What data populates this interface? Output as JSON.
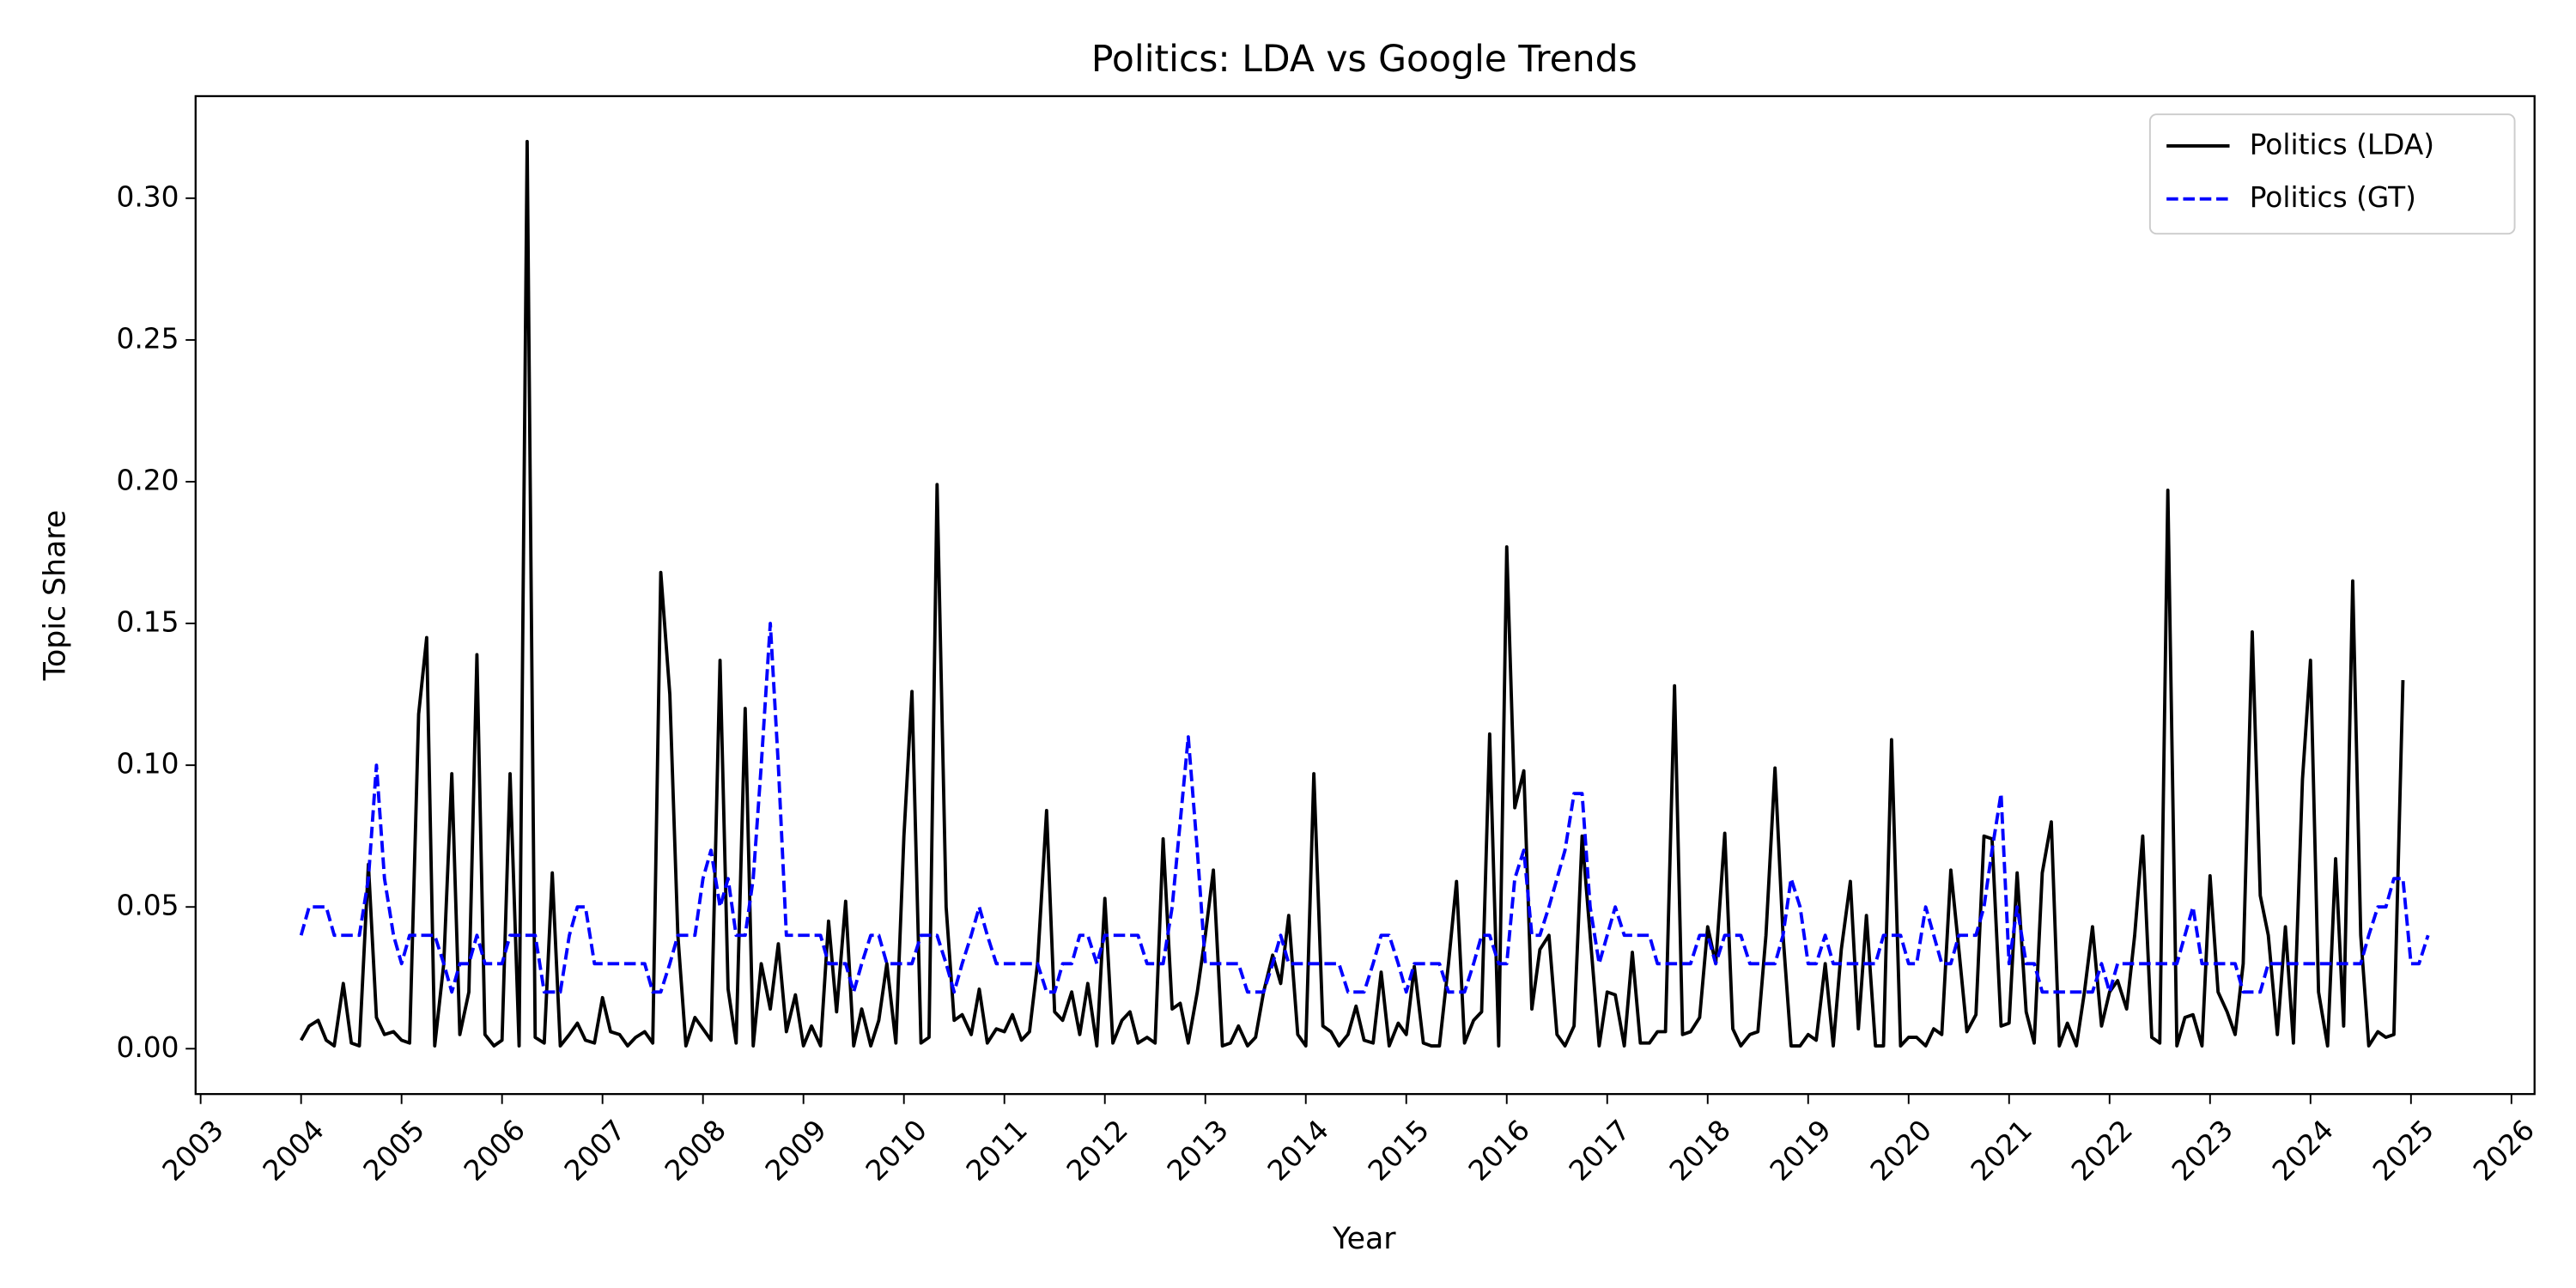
{
  "chart_data": {
    "type": "line",
    "title": "Politics: LDA vs Google Trends",
    "x_label": "Year",
    "y_label": "Topic Share",
    "x": [
      2004,
      2004.08,
      2004.17,
      2004.25,
      2004.33,
      2004.42,
      2004.5,
      2004.58,
      2004.67,
      2004.75,
      2004.83,
      2004.92,
      2005,
      2005.08,
      2005.17,
      2005.25,
      2005.33,
      2005.42,
      2005.5,
      2005.58,
      2005.67,
      2005.75,
      2005.83,
      2005.92,
      2006,
      2006.08,
      2006.17,
      2006.25,
      2006.33,
      2006.42,
      2006.5,
      2006.58,
      2006.67,
      2006.75,
      2006.83,
      2006.92,
      2007,
      2007.08,
      2007.17,
      2007.25,
      2007.33,
      2007.42,
      2007.5,
      2007.58,
      2007.67,
      2007.75,
      2007.83,
      2007.92,
      2008,
      2008.08,
      2008.17,
      2008.25,
      2008.33,
      2008.42,
      2008.5,
      2008.58,
      2008.67,
      2008.75,
      2008.83,
      2008.92,
      2009,
      2009.08,
      2009.17,
      2009.25,
      2009.33,
      2009.42,
      2009.5,
      2009.58,
      2009.67,
      2009.75,
      2009.83,
      2009.92,
      2010,
      2010.08,
      2010.17,
      2010.25,
      2010.33,
      2010.42,
      2010.5,
      2010.58,
      2010.67,
      2010.75,
      2010.83,
      2010.92,
      2011,
      2011.08,
      2011.17,
      2011.25,
      2011.33,
      2011.42,
      2011.5,
      2011.58,
      2011.67,
      2011.75,
      2011.83,
      2011.92,
      2012,
      2012.08,
      2012.17,
      2012.25,
      2012.33,
      2012.42,
      2012.5,
      2012.58,
      2012.67,
      2012.75,
      2012.83,
      2012.92,
      2013,
      2013.08,
      2013.17,
      2013.25,
      2013.33,
      2013.42,
      2013.5,
      2013.58,
      2013.67,
      2013.75,
      2013.83,
      2013.92,
      2014,
      2014.08,
      2014.17,
      2014.25,
      2014.33,
      2014.42,
      2014.5,
      2014.58,
      2014.67,
      2014.75,
      2014.83,
      2014.92,
      2015,
      2015.08,
      2015.17,
      2015.25,
      2015.33,
      2015.42,
      2015.5,
      2015.58,
      2015.67,
      2015.75,
      2015.83,
      2015.92,
      2016,
      2016.08,
      2016.17,
      2016.25,
      2016.33,
      2016.42,
      2016.5,
      2016.58,
      2016.67,
      2016.75,
      2016.83,
      2016.92,
      2017,
      2017.08,
      2017.17,
      2017.25,
      2017.33,
      2017.42,
      2017.5,
      2017.58,
      2017.67,
      2017.75,
      2017.83,
      2017.92,
      2018,
      2018.08,
      2018.17,
      2018.25,
      2018.33,
      2018.42,
      2018.5,
      2018.58,
      2018.67,
      2018.75,
      2018.83,
      2018.92,
      2019,
      2019.08,
      2019.17,
      2019.25,
      2019.33,
      2019.42,
      2019.5,
      2019.58,
      2019.67,
      2019.75,
      2019.83,
      2019.92,
      2020,
      2020.08,
      2020.17,
      2020.25,
      2020.33,
      2020.42,
      2020.5,
      2020.58,
      2020.67,
      2020.75,
      2020.83,
      2020.92,
      2021,
      2021.08,
      2021.17,
      2021.25,
      2021.33,
      2021.42,
      2021.5,
      2021.58,
      2021.67,
      2021.75,
      2021.83,
      2021.92,
      2022,
      2022.08,
      2022.17,
      2022.25,
      2022.33,
      2022.42,
      2022.5,
      2022.58,
      2022.67,
      2022.75,
      2022.83,
      2022.92,
      2023,
      2023.08,
      2023.17,
      2023.25,
      2023.33,
      2023.42,
      2023.5,
      2023.58,
      2023.67,
      2023.75,
      2023.83,
      2023.92,
      2024,
      2024.08,
      2024.17,
      2024.25,
      2024.33,
      2024.42,
      2024.5,
      2024.58,
      2024.67,
      2024.75,
      2024.83,
      2024.92,
      2025,
      2025.08,
      2025.17
    ],
    "series": [
      {
        "name": "Politics (LDA)",
        "color": "#000000",
        "dash": "solid",
        "values": [
          0.003,
          0.008,
          0.01,
          0.003,
          0.001,
          0.023,
          0.002,
          0.001,
          0.065,
          0.011,
          0.005,
          0.006,
          0.003,
          0.002,
          0.118,
          0.145,
          0.001,
          0.03,
          0.097,
          0.005,
          0.02,
          0.139,
          0.005,
          0.001,
          0.003,
          0.097,
          0.001,
          0.32,
          0.004,
          0.002,
          0.062,
          0.001,
          0.005,
          0.009,
          0.003,
          0.002,
          0.018,
          0.006,
          0.005,
          0.001,
          0.004,
          0.006,
          0.002,
          0.168,
          0.125,
          0.04,
          0.001,
          0.011,
          0.007,
          0.003,
          0.137,
          0.021,
          0.002,
          0.12,
          0.001,
          0.03,
          0.014,
          0.037,
          0.006,
          0.019,
          0.001,
          0.008,
          0.001,
          0.045,
          0.013,
          0.052,
          0.001,
          0.014,
          0.001,
          0.01,
          0.03,
          0.002,
          0.075,
          0.126,
          0.002,
          0.004,
          0.199,
          0.05,
          0.01,
          0.012,
          0.005,
          0.021,
          0.002,
          0.007,
          0.006,
          0.012,
          0.003,
          0.006,
          0.03,
          0.084,
          0.013,
          0.01,
          0.02,
          0.005,
          0.023,
          0.001,
          0.053,
          0.002,
          0.01,
          0.013,
          0.002,
          0.004,
          0.002,
          0.074,
          0.014,
          0.016,
          0.002,
          0.02,
          0.04,
          0.063,
          0.001,
          0.002,
          0.008,
          0.001,
          0.004,
          0.02,
          0.033,
          0.023,
          0.047,
          0.005,
          0.001,
          0.097,
          0.008,
          0.006,
          0.001,
          0.005,
          0.015,
          0.003,
          0.002,
          0.027,
          0.001,
          0.009,
          0.005,
          0.029,
          0.002,
          0.001,
          0.001,
          0.03,
          0.059,
          0.002,
          0.01,
          0.013,
          0.111,
          0.001,
          0.177,
          0.085,
          0.098,
          0.014,
          0.035,
          0.04,
          0.005,
          0.001,
          0.008,
          0.075,
          0.04,
          0.001,
          0.02,
          0.019,
          0.001,
          0.034,
          0.002,
          0.002,
          0.006,
          0.006,
          0.128,
          0.005,
          0.006,
          0.011,
          0.043,
          0.03,
          0.076,
          0.007,
          0.001,
          0.005,
          0.006,
          0.04,
          0.099,
          0.04,
          0.001,
          0.001,
          0.005,
          0.003,
          0.03,
          0.001,
          0.035,
          0.059,
          0.007,
          0.047,
          0.001,
          0.001,
          0.109,
          0.001,
          0.004,
          0.004,
          0.001,
          0.007,
          0.005,
          0.063,
          0.035,
          0.006,
          0.012,
          0.075,
          0.074,
          0.008,
          0.009,
          0.062,
          0.013,
          0.002,
          0.062,
          0.08,
          0.001,
          0.009,
          0.001,
          0.02,
          0.043,
          0.008,
          0.02,
          0.024,
          0.014,
          0.04,
          0.075,
          0.004,
          0.002,
          0.197,
          0.001,
          0.011,
          0.012,
          0.001,
          0.061,
          0.02,
          0.013,
          0.005,
          0.03,
          0.147,
          0.054,
          0.04,
          0.005,
          0.043,
          0.002,
          0.095,
          0.137,
          0.02,
          0.001,
          0.067,
          0.008,
          0.165,
          0.04,
          0.001,
          0.006,
          0.004,
          0.005,
          0.13,
          null,
          null,
          null
        ]
      },
      {
        "name": "Politics (GT)",
        "color": "#0000ff",
        "dash": "dashed",
        "values": [
          0.04,
          0.05,
          0.05,
          0.05,
          0.04,
          0.04,
          0.04,
          0.04,
          0.06,
          0.1,
          0.06,
          0.04,
          0.03,
          0.04,
          0.04,
          0.04,
          0.04,
          0.03,
          0.02,
          0.03,
          0.03,
          0.04,
          0.03,
          0.03,
          0.03,
          0.04,
          0.04,
          0.04,
          0.04,
          0.02,
          0.02,
          0.02,
          0.04,
          0.05,
          0.05,
          0.03,
          0.03,
          0.03,
          0.03,
          0.03,
          0.03,
          0.03,
          0.02,
          0.02,
          0.03,
          0.04,
          0.04,
          0.04,
          0.06,
          0.07,
          0.05,
          0.06,
          0.04,
          0.04,
          0.06,
          0.1,
          0.15,
          0.1,
          0.04,
          0.04,
          0.04,
          0.04,
          0.04,
          0.03,
          0.03,
          0.03,
          0.02,
          0.03,
          0.04,
          0.04,
          0.03,
          0.03,
          0.03,
          0.03,
          0.04,
          0.04,
          0.04,
          0.03,
          0.02,
          0.03,
          0.04,
          0.05,
          0.04,
          0.03,
          0.03,
          0.03,
          0.03,
          0.03,
          0.03,
          0.02,
          0.02,
          0.03,
          0.03,
          0.04,
          0.04,
          0.03,
          0.04,
          0.04,
          0.04,
          0.04,
          0.04,
          0.03,
          0.03,
          0.03,
          0.05,
          0.08,
          0.11,
          0.07,
          0.03,
          0.03,
          0.03,
          0.03,
          0.03,
          0.02,
          0.02,
          0.02,
          0.03,
          0.04,
          0.03,
          0.03,
          0.03,
          0.03,
          0.03,
          0.03,
          0.03,
          0.02,
          0.02,
          0.02,
          0.03,
          0.04,
          0.04,
          0.03,
          0.02,
          0.03,
          0.03,
          0.03,
          0.03,
          0.02,
          0.02,
          0.02,
          0.03,
          0.04,
          0.04,
          0.03,
          0.03,
          0.06,
          0.07,
          0.04,
          0.04,
          0.05,
          0.06,
          0.07,
          0.09,
          0.09,
          0.05,
          0.03,
          0.04,
          0.05,
          0.04,
          0.04,
          0.04,
          0.04,
          0.03,
          0.03,
          0.03,
          0.03,
          0.03,
          0.04,
          0.04,
          0.03,
          0.04,
          0.04,
          0.04,
          0.03,
          0.03,
          0.03,
          0.03,
          0.04,
          0.06,
          0.05,
          0.03,
          0.03,
          0.04,
          0.03,
          0.03,
          0.03,
          0.03,
          0.03,
          0.03,
          0.04,
          0.04,
          0.04,
          0.03,
          0.03,
          0.05,
          0.04,
          0.03,
          0.03,
          0.04,
          0.04,
          0.04,
          0.05,
          0.07,
          0.09,
          0.03,
          0.05,
          0.03,
          0.03,
          0.02,
          0.02,
          0.02,
          0.02,
          0.02,
          0.02,
          0.02,
          0.03,
          0.02,
          0.03,
          0.03,
          0.03,
          0.03,
          0.03,
          0.03,
          0.03,
          0.03,
          0.04,
          0.05,
          0.03,
          0.03,
          0.03,
          0.03,
          0.03,
          0.02,
          0.02,
          0.02,
          0.03,
          0.03,
          0.03,
          0.03,
          0.03,
          0.03,
          0.03,
          0.03,
          0.03,
          0.03,
          0.03,
          0.03,
          0.04,
          0.05,
          0.05,
          0.06,
          0.06,
          0.03,
          0.03,
          0.04
        ]
      }
    ],
    "xlim": [
      2002.95,
      2026.23
    ],
    "xticks": [
      2003,
      2004,
      2005,
      2006,
      2007,
      2008,
      2009,
      2010,
      2011,
      2012,
      2013,
      2014,
      2015,
      2016,
      2017,
      2018,
      2019,
      2020,
      2021,
      2022,
      2023,
      2024,
      2025,
      2026
    ],
    "ylim": [
      -0.016,
      0.336
    ],
    "yticks": [
      {
        "value": 0,
        "label": "0.00"
      },
      0.05,
      {
        "value": 0.1,
        "label": "0.10"
      },
      0.15,
      {
        "value": 0.2,
        "label": "0.20"
      },
      0.25,
      {
        "value": 0.3,
        "label": "0.30"
      }
    ],
    "grid": false,
    "legend": "upper right"
  }
}
